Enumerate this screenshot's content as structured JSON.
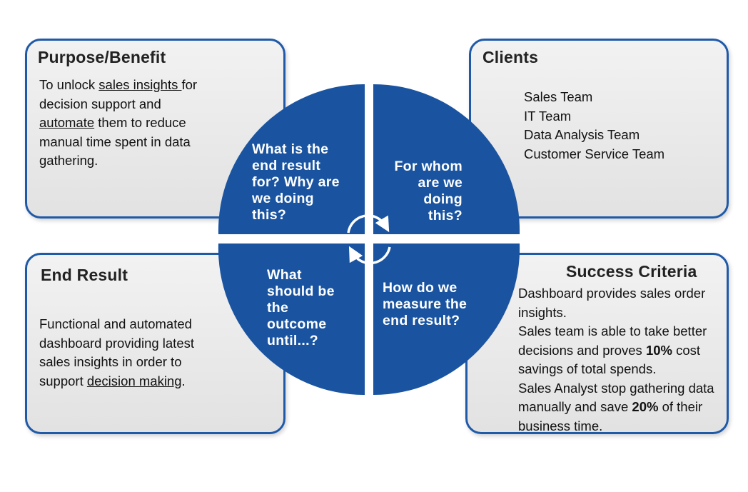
{
  "purpose": {
    "title": "Purpose/Benefit",
    "line1_prefix": "To unlock ",
    "line1_link": "sales insights ",
    "line1_suffix": "for",
    "line2": "decision support and",
    "line3_link": "automate",
    "line3_suffix": " them to reduce",
    "line4": "manual time spent in data",
    "line5": "gathering."
  },
  "clients": {
    "title": "Clients",
    "items": [
      "Sales Team",
      "IT Team",
      "Data Analysis Team",
      "Customer Service Team"
    ]
  },
  "end_result": {
    "title": "End Result",
    "line1": "Functional and automated",
    "line2": "dashboard providing latest",
    "line3": "sales insights in order to",
    "line4_prefix": "support ",
    "line4_link": "decision making",
    "line4_suffix": "."
  },
  "success": {
    "title": "Success Criteria",
    "line1": "Dashboard provides sales order",
    "line2": "insights.",
    "line3": "Sales team is able to take better",
    "line4_prefix": "decisions and proves ",
    "line4_bold": "10%",
    "line4_suffix": " cost",
    "line5": "savings of total spends.",
    "line6": "Sales Analyst stop gathering data",
    "line7_prefix": "manually and save ",
    "line7_bold": "20%",
    "line7_suffix": " of their",
    "line8": "business time."
  },
  "quadrants": {
    "top_left": [
      "What is the",
      "end result",
      "for? Why are",
      "we doing",
      "this?"
    ],
    "top_right": [
      "For whom",
      "are we",
      "doing",
      "this?"
    ],
    "bottom_left": [
      "What",
      "should be",
      "the",
      "outcome",
      "until...?"
    ],
    "bottom_right": [
      "How do we",
      "measure the",
      "end result?"
    ]
  },
  "colors": {
    "quadrant_blue": "#1a54a0",
    "border_blue": "#1f5aa8"
  },
  "icons": [
    "cycle-arrow-icon"
  ]
}
